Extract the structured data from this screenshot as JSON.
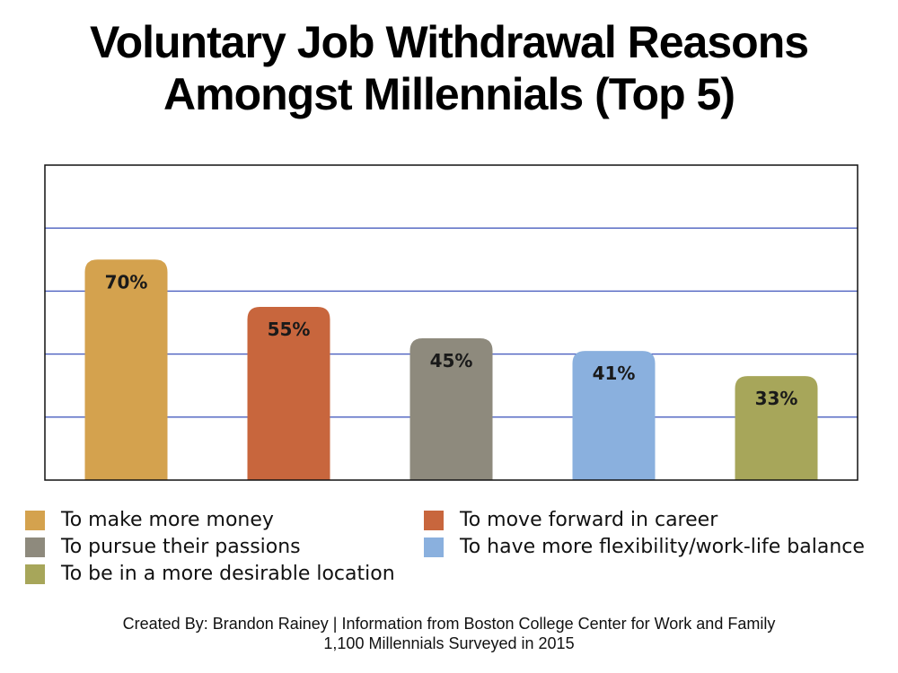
{
  "title": {
    "line1": "Voluntary Job Withdrawal Reasons",
    "line2": "Amongst Millennials (Top 5)"
  },
  "chart_data": {
    "type": "bar",
    "categories": [
      "To make more money",
      "To move forward in career",
      "To pursue their passions",
      "To have more flexibility/work-life balance",
      "To be in a more desirable location"
    ],
    "values": [
      70,
      55,
      45,
      41,
      33
    ],
    "data_labels": [
      "70%",
      "55%",
      "45%",
      "41%",
      "33%"
    ],
    "colors": [
      "#D4A24E",
      "#C8663D",
      "#8E8A7D",
      "#8AB0DE",
      "#A7A65A"
    ],
    "ylim": [
      0,
      100
    ],
    "grid": true,
    "grid_color": "#4A5FBF",
    "legend_placement": "bottom"
  },
  "legend": [
    {
      "label": "To make more money",
      "color": "#D4A24E"
    },
    {
      "label": "To move forward in career",
      "color": "#C8663D"
    },
    {
      "label": "To pursue their passions",
      "color": "#8E8A7D"
    },
    {
      "label": "To have more flexibility/work-life balance",
      "color": "#8AB0DE"
    },
    {
      "label": "To be in a more desirable location",
      "color": "#A7A65A"
    }
  ],
  "credits": {
    "line1": "Created By: Brandon Rainey | Information from Boston College Center for Work and Family",
    "line2": "1,100 Millennials Surveyed in 2015"
  }
}
